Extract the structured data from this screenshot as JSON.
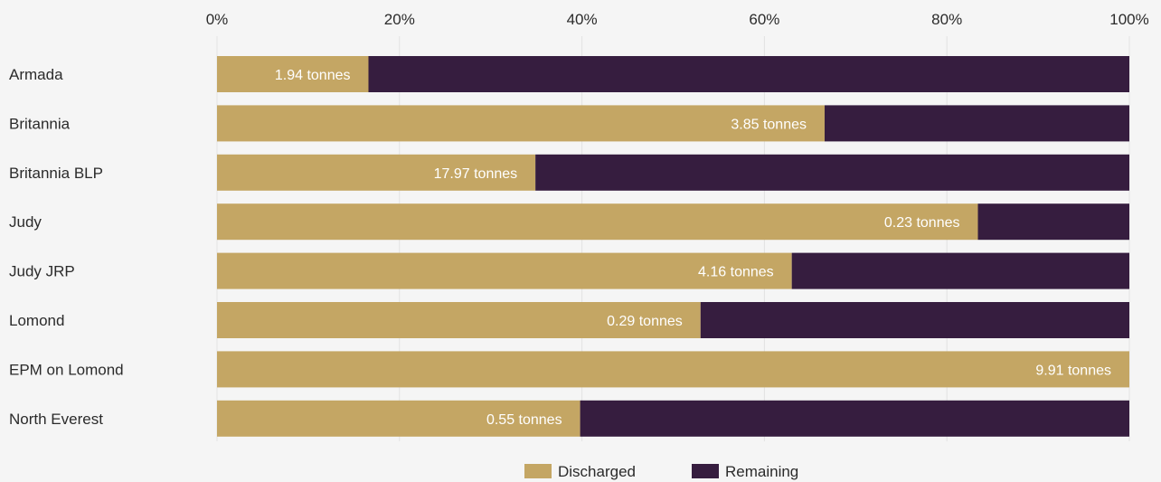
{
  "chart_data": {
    "type": "bar",
    "orientation": "horizontal",
    "stacked": true,
    "normalized": true,
    "categories": [
      "Armada",
      "Britannia",
      "Britannia BLP",
      "Judy",
      "Judy JRP",
      "Lomond",
      "EPM on Lomond",
      "North Everest"
    ],
    "series": [
      {
        "name": "Discharged",
        "color": "#c4a664",
        "values": [
          16.6,
          66.6,
          34.9,
          83.4,
          63.0,
          53.0,
          100.0,
          39.8
        ]
      },
      {
        "name": "Remaining",
        "color": "#361d3f",
        "values": [
          83.4,
          33.4,
          65.1,
          16.6,
          37.0,
          47.1,
          0.1,
          60.2
        ]
      }
    ],
    "data_labels": [
      "1.94 tonnes",
      "3.85 tonnes",
      "17.97 tonnes",
      "0.23 tonnes",
      "4.16 tonnes",
      "0.29 tonnes",
      "9.91 tonnes",
      "0.55 tonnes"
    ],
    "x_ticks": [
      "0%",
      "20%",
      "40%",
      "60%",
      "80%",
      "100%"
    ],
    "xlim": [
      0,
      100
    ],
    "x_axis_position": "top",
    "grid": "vertical",
    "legend_position": "bottom-center",
    "title": "",
    "xlabel": "",
    "ylabel": ""
  }
}
